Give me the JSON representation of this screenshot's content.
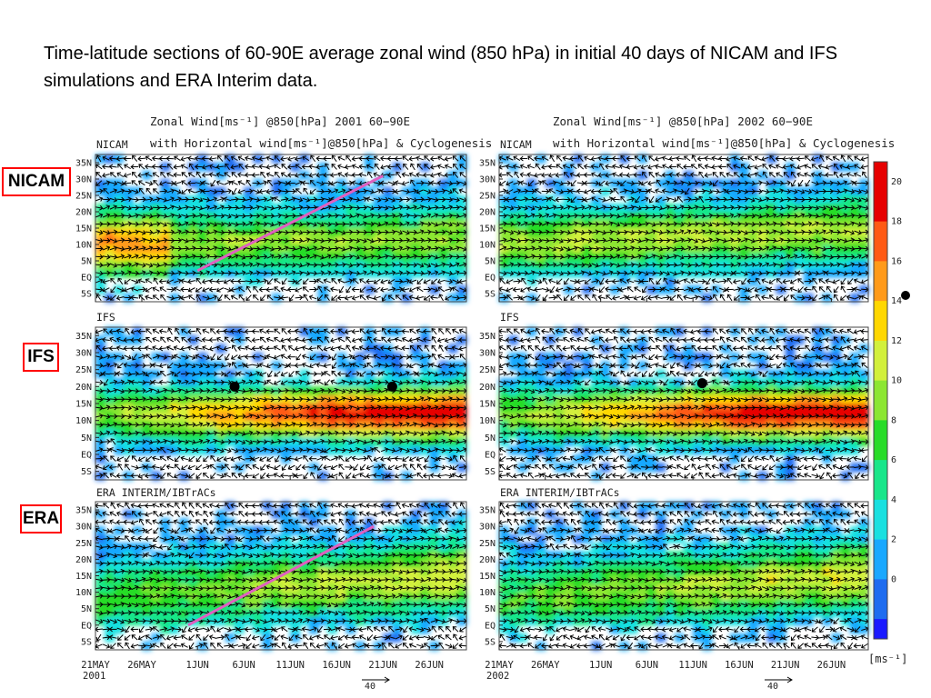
{
  "slide": {
    "title": "Time-latitude sections of 60-90E average zonal wind (850 hPa) in initial 40 days of NICAM and IFS simulations and ERA Interim data."
  },
  "row_labels": [
    "NICAM",
    "IFS",
    "ERA"
  ],
  "columns": [
    {
      "title_line1": "Zonal Wind[ms⁻¹] @850[hPa] 2001 60−90E",
      "title_line2": "with Horizontal wind[ms⁻¹]@850[hPa] & Cyclogenesis",
      "x_ticks": [
        "21MAY",
        "26MAY",
        "1JUN",
        "6JUN",
        "11JUN",
        "16JUN",
        "21JUN",
        "26JUN"
      ],
      "year": "2001"
    },
    {
      "title_line1": "Zonal Wind[ms⁻¹] @850[hPa] 2002 60−90E",
      "title_line2": "with Horizontal wind[ms⁻¹]@850[hPa] & Cyclogenesis",
      "x_ticks": [
        "21MAY",
        "26MAY",
        "1JUN",
        "6JUN",
        "11JUN",
        "16JUN",
        "21JUN",
        "26JUN"
      ],
      "year": "2002"
    }
  ],
  "panel_tags": [
    "NICAM",
    "IFS",
    "ERA INTERIM/IBTrACs"
  ],
  "y_ticks": [
    "35N",
    "30N",
    "25N",
    "20N",
    "15N",
    "10N",
    "5N",
    "EQ",
    "5S"
  ],
  "reference_vector": {
    "label": "40"
  },
  "colorbar": {
    "unit": "[ms⁻¹]",
    "labels": [
      "0",
      "2",
      "4",
      "6",
      "8",
      "10",
      "12",
      "14",
      "16",
      "18",
      "20"
    ]
  },
  "colors": {
    "label_border": "#ff0000",
    "trend_line": "#e060c0",
    "cyclogenesis_marker": "#000000"
  },
  "chart_data": [
    {
      "type": "heatmap",
      "model": "NICAM",
      "year": "2001",
      "x": [
        "21MAY",
        "26MAY",
        "1JUN",
        "6JUN",
        "11JUN",
        "16JUN",
        "21JUN",
        "26JUN"
      ],
      "y": [
        "35N",
        "30N",
        "25N",
        "20N",
        "15N",
        "10N",
        "5N",
        "EQ",
        "5S"
      ],
      "cyclogenesis": [],
      "trend_line": {
        "from": [
          "1JUN",
          "2N"
        ],
        "to": [
          "21JUN",
          "31N"
        ]
      }
    },
    {
      "type": "heatmap",
      "model": "NICAM",
      "year": "2002",
      "x": [
        "21MAY",
        "26MAY",
        "1JUN",
        "6JUN",
        "11JUN",
        "16JUN",
        "21JUN",
        "26JUN"
      ],
      "y": [
        "35N",
        "30N",
        "25N",
        "20N",
        "15N",
        "10N",
        "5N",
        "EQ",
        "5S"
      ],
      "cyclogenesis": [],
      "trend_line": null
    },
    {
      "type": "heatmap",
      "model": "IFS",
      "year": "2001",
      "x": [
        "21MAY",
        "26MAY",
        "1JUN",
        "6JUN",
        "11JUN",
        "16JUN",
        "21JUN",
        "26JUN"
      ],
      "y": [
        "35N",
        "30N",
        "25N",
        "20N",
        "15N",
        "10N",
        "5N",
        "EQ",
        "5S"
      ],
      "cyclogenesis": [
        [
          "5JUN",
          "20N"
        ],
        [
          "22JUN",
          "20N"
        ]
      ],
      "trend_line": null
    },
    {
      "type": "heatmap",
      "model": "IFS",
      "year": "2002",
      "x": [
        "21MAY",
        "26MAY",
        "1JUN",
        "6JUN",
        "11JUN",
        "16JUN",
        "21JUN",
        "26JUN"
      ],
      "y": [
        "35N",
        "30N",
        "25N",
        "20N",
        "15N",
        "10N",
        "5N",
        "EQ",
        "5S"
      ],
      "cyclogenesis": [
        [
          "12JUN",
          "21N"
        ]
      ],
      "trend_line": null
    },
    {
      "type": "heatmap",
      "model": "ERA INTERIM/IBTrACs",
      "year": "2001",
      "x": [
        "21MAY",
        "26MAY",
        "1JUN",
        "6JUN",
        "11JUN",
        "16JUN",
        "21JUN",
        "26JUN"
      ],
      "y": [
        "35N",
        "30N",
        "25N",
        "20N",
        "15N",
        "10N",
        "5N",
        "EQ",
        "5S"
      ],
      "cyclogenesis": [],
      "trend_line": {
        "from": [
          "31MAY",
          "EQ"
        ],
        "to": [
          "20JUN",
          "30N"
        ]
      }
    },
    {
      "type": "heatmap",
      "model": "ERA INTERIM/IBTrACs",
      "year": "2002",
      "x": [
        "21MAY",
        "26MAY",
        "1JUN",
        "6JUN",
        "11JUN",
        "16JUN",
        "21JUN",
        "26JUN"
      ],
      "y": [
        "35N",
        "30N",
        "25N",
        "20N",
        "15N",
        "10N",
        "5N",
        "EQ",
        "5S"
      ],
      "cyclogenesis": [],
      "trend_line": null
    }
  ]
}
